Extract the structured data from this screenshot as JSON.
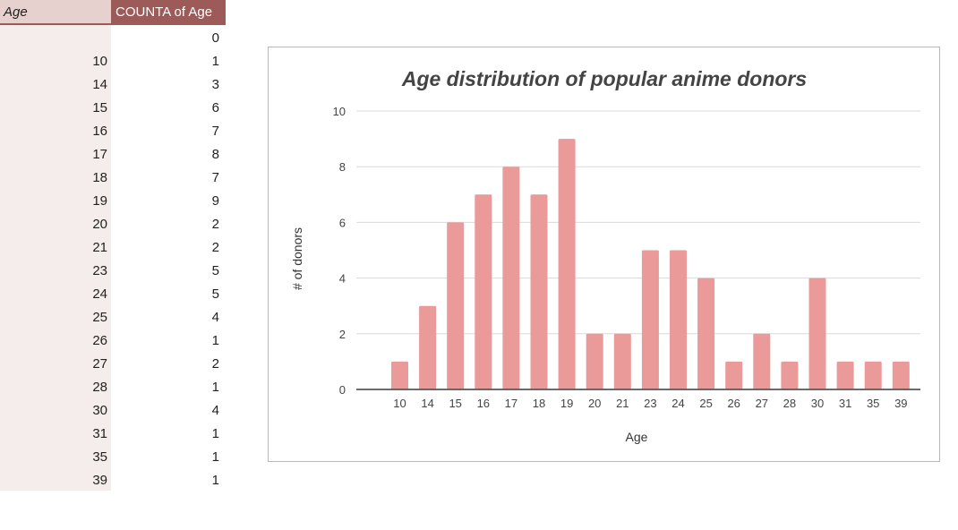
{
  "pivot": {
    "header": {
      "age": "Age",
      "count": "COUNTA of Age"
    },
    "rows": [
      {
        "age": "",
        "count": "0"
      },
      {
        "age": "10",
        "count": "1"
      },
      {
        "age": "14",
        "count": "3"
      },
      {
        "age": "15",
        "count": "6"
      },
      {
        "age": "16",
        "count": "7"
      },
      {
        "age": "17",
        "count": "8"
      },
      {
        "age": "18",
        "count": "7"
      },
      {
        "age": "19",
        "count": "9"
      },
      {
        "age": "20",
        "count": "2"
      },
      {
        "age": "21",
        "count": "2"
      },
      {
        "age": "23",
        "count": "5"
      },
      {
        "age": "24",
        "count": "5"
      },
      {
        "age": "25",
        "count": "4"
      },
      {
        "age": "26",
        "count": "1"
      },
      {
        "age": "27",
        "count": "2"
      },
      {
        "age": "28",
        "count": "1"
      },
      {
        "age": "30",
        "count": "4"
      },
      {
        "age": "31",
        "count": "1"
      },
      {
        "age": "35",
        "count": "1"
      },
      {
        "age": "39",
        "count": "1"
      }
    ]
  },
  "chart_data": {
    "type": "bar",
    "title": "Age distribution of popular anime donors",
    "xlabel": "Age",
    "ylabel": "# of donors",
    "categories": [
      "10",
      "14",
      "15",
      "16",
      "17",
      "18",
      "19",
      "20",
      "21",
      "23",
      "24",
      "25",
      "26",
      "27",
      "28",
      "30",
      "31",
      "35",
      "39"
    ],
    "values": [
      1,
      3,
      6,
      7,
      8,
      7,
      9,
      2,
      2,
      5,
      5,
      4,
      1,
      2,
      1,
      4,
      1,
      1,
      1
    ],
    "ylim": [
      0,
      10
    ],
    "yticks": [
      "0",
      "2",
      "4",
      "6",
      "8",
      "10"
    ],
    "grid": true,
    "legend": "none",
    "bar_color": "#e99a99"
  }
}
